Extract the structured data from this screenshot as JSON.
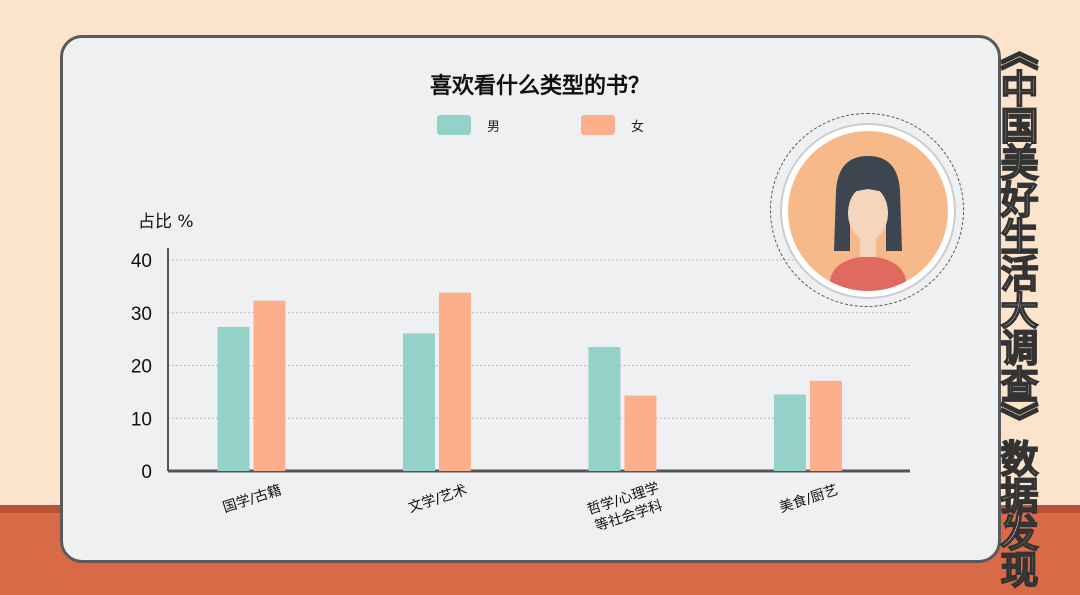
{
  "vertical_title": "《中国美好生活大调查》数据发现",
  "chart_data": {
    "type": "bar",
    "title": "喜欢看什么类型的书？",
    "ylabel": "占比 %",
    "xlabel": "",
    "categories": [
      "国学/古籍",
      "文学/艺术",
      "哲学/心理学\n等社会学科",
      "美食/厨艺"
    ],
    "series": [
      {
        "name": "男",
        "color": "#94d2c9",
        "values": [
          27.3,
          26.1,
          23.5,
          14.5
        ]
      },
      {
        "name": "女",
        "color": "#fbb08b",
        "values": [
          32.3,
          33.8,
          14.3,
          17.1
        ]
      }
    ],
    "ylim": [
      0,
      40
    ],
    "yticks": [
      "0",
      "10",
      "20",
      "30",
      "40"
    ],
    "grid": true,
    "legend": "top"
  }
}
